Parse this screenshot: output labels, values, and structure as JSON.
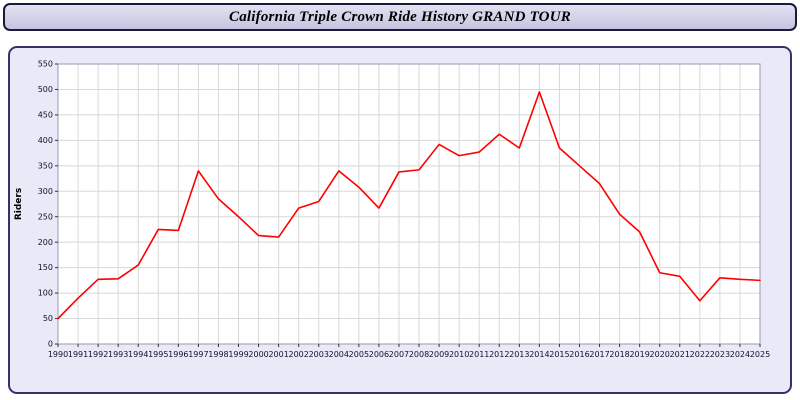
{
  "header": {
    "title": "California Triple Crown Ride History GRAND TOUR"
  },
  "chart_data": {
    "type": "line",
    "title": "California Triple Crown Ride History GRAND TOUR",
    "xlabel": "",
    "ylabel": "Riders",
    "ylim": [
      0,
      550
    ],
    "y_tick_step": 50,
    "grid": true,
    "legend": "none",
    "line_color": "#ff0000",
    "plot_bg": "#ffffff",
    "panel_bg": "#e9e9f7",
    "grid_color": "#d8d8d8",
    "tick_label_color": "#10102e",
    "categories": [
      "1990",
      "1991",
      "1992",
      "1993",
      "1994",
      "1995",
      "1996",
      "1997",
      "1998",
      "1999",
      "2000",
      "2001",
      "2002",
      "2003",
      "2004",
      "2005",
      "2006",
      "2007",
      "2008",
      "2009",
      "2010",
      "2011",
      "2012",
      "2013",
      "2014",
      "2015",
      "2016",
      "2017",
      "2018",
      "2019",
      "2020",
      "2021",
      "2022",
      "2023",
      "2024",
      "2025"
    ],
    "values": [
      50,
      90,
      127,
      128,
      155,
      225,
      223,
      340,
      285,
      250,
      213,
      210,
      267,
      280,
      340,
      308,
      267,
      338,
      342,
      392,
      370,
      377,
      412,
      385,
      495,
      385,
      350,
      315,
      255,
      220,
      140,
      133,
      85,
      130,
      127,
      125
    ]
  }
}
